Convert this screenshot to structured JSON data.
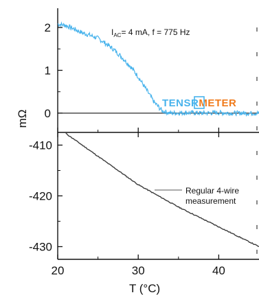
{
  "chart_data": [
    {
      "type": "line",
      "panel": "top",
      "ylabel": "mΩ",
      "ylim": [
        -0.45,
        2.45
      ],
      "xlim": [
        20,
        45
      ],
      "yticks": [
        0,
        1,
        2
      ],
      "ytick_labels": [
        "0",
        "1",
        "2"
      ],
      "annotation": {
        "prefix": "I",
        "sub": "AC",
        "rest": "= 4 mA, f = 775 Hz"
      },
      "brand": {
        "part1": "TENS",
        "part2": "R",
        "part3": "METER"
      },
      "colors": {
        "series": "#48b3ec",
        "brand_main": "#48b3ec",
        "brand_accent": "#f07a1a"
      },
      "series": [
        {
          "x": [
            20,
            21,
            22,
            23,
            24,
            25,
            26,
            27,
            28,
            29,
            30,
            31,
            32,
            33,
            34,
            36,
            38,
            40,
            42,
            45
          ],
          "values": [
            2.08,
            2.05,
            1.97,
            1.88,
            1.82,
            1.75,
            1.62,
            1.48,
            1.3,
            1.1,
            0.85,
            0.55,
            0.25,
            0.05,
            0.0,
            0.01,
            0.0,
            0.01,
            0.0,
            0.0
          ]
        }
      ]
    },
    {
      "type": "line",
      "panel": "bottom",
      "xlabel": "T (°C)",
      "xlim": [
        20,
        45
      ],
      "xticks": [
        20,
        30,
        40
      ],
      "xtick_labels": [
        "20",
        "30",
        "40"
      ],
      "ylim": [
        -432.5,
        -407.5
      ],
      "yticks": [
        -410,
        -420,
        -430
      ],
      "ytick_labels": [
        "-410",
        "-420",
        "-430"
      ],
      "annotation_lines": [
        "Regular 4-wire",
        "measurement"
      ],
      "colors": {
        "series": "#3a3a3a"
      },
      "series": [
        {
          "x": [
            21,
            25,
            30,
            35,
            40,
            45
          ],
          "values": [
            -407.7,
            -412.2,
            -417.8,
            -422.2,
            -426.1,
            -430.0
          ]
        }
      ]
    }
  ]
}
